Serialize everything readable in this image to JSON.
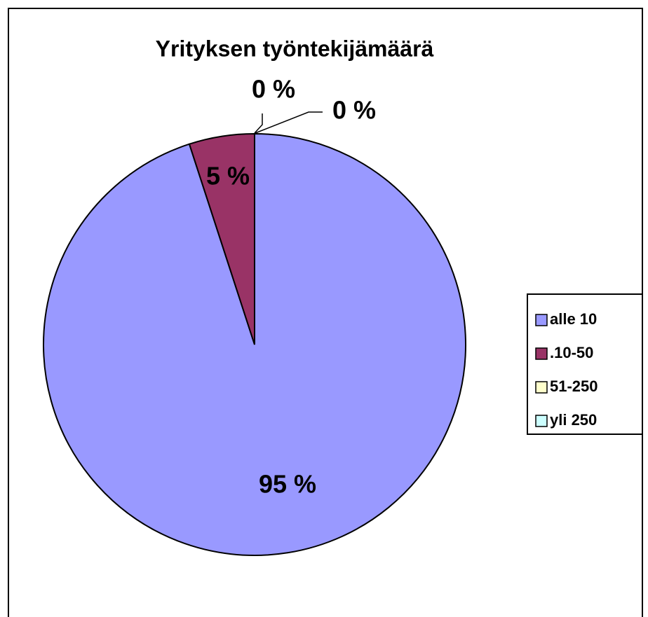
{
  "chart_data": {
    "type": "pie",
    "title": "Yrityksen työntekijämäärä",
    "categories": [
      "alle 10",
      ".10-50",
      "51-250",
      "yli 250"
    ],
    "values": [
      95,
      5,
      0,
      0
    ],
    "value_labels": [
      "95 %",
      "5 %",
      "0 %",
      "0 %"
    ],
    "colors": [
      "#9999ff",
      "#993366",
      "#ffffcc",
      "#ccffff"
    ],
    "legend": "right"
  }
}
